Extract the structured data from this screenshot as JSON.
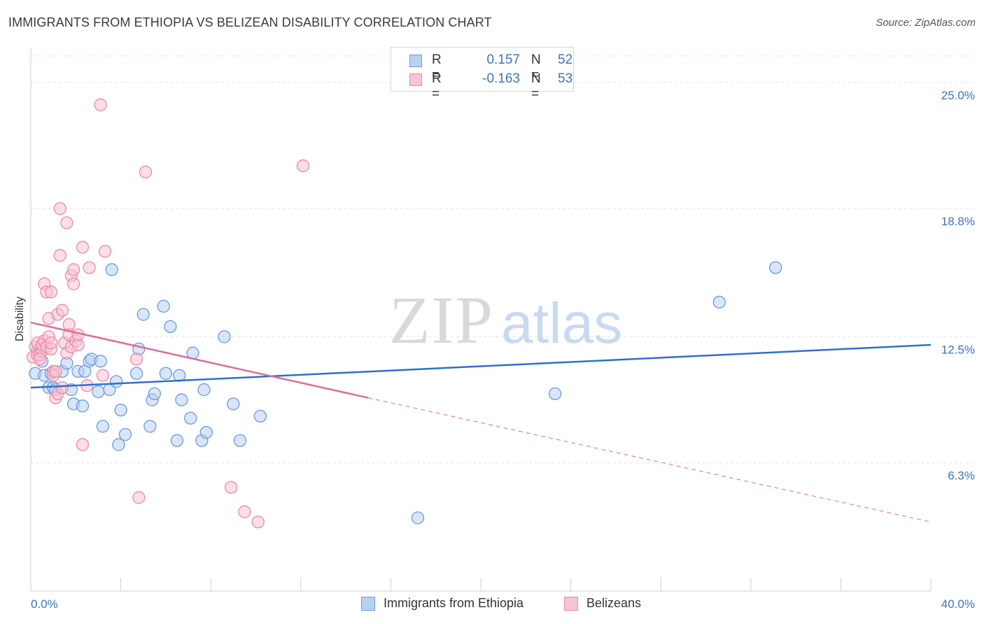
{
  "title": "IMMIGRANTS FROM ETHIOPIA VS BELIZEAN DISABILITY CORRELATION CHART",
  "source": "Source: ZipAtlas.com",
  "watermark": {
    "part1": "ZIP",
    "part2": "atlas"
  },
  "legend": {
    "r_label": "R =",
    "n_label": "N =",
    "rows": [
      {
        "r": "0.157",
        "n": "52"
      },
      {
        "r": "-0.163",
        "n": "53"
      }
    ]
  },
  "colors": {
    "blue_fill": "#b9d1f1",
    "blue_stroke": "#6a9be0",
    "blue_line": "#2f6fcc",
    "pink_fill": "#f8c3d3",
    "pink_stroke": "#ea8aa8",
    "pink_line": "#e06b94",
    "tick_label": "#3d73c4",
    "grid": "#e4e4e4"
  },
  "chart_data": {
    "type": "scatter",
    "title": "IMMIGRANTS FROM ETHIOPIA VS BELIZEAN DISABILITY CORRELATION CHART",
    "xlabel": "",
    "ylabel": "Disability",
    "xlim": [
      0,
      40
    ],
    "ylim": [
      0,
      26.3
    ],
    "x_tick_labels": [
      "0.0%",
      "40.0%"
    ],
    "y_ticks": [
      6.3,
      12.5,
      18.8,
      25.0
    ],
    "y_tick_labels": [
      "6.3%",
      "12.5%",
      "18.8%",
      "25.0%"
    ],
    "grid": "horizontal dashed",
    "legend_position": "top-center and bottom",
    "series": [
      {
        "name": "Immigrants from Ethiopia",
        "r": 0.157,
        "n": 52,
        "trend": {
          "x": [
            0,
            40
          ],
          "y": [
            10.0,
            12.1
          ]
        },
        "points": [
          [
            0.2,
            10.7
          ],
          [
            0.3,
            11.8
          ],
          [
            0.4,
            11.9
          ],
          [
            0.5,
            11.3
          ],
          [
            0.6,
            10.6
          ],
          [
            0.8,
            10.0
          ],
          [
            0.9,
            10.7
          ],
          [
            1.0,
            10.0
          ],
          [
            1.1,
            9.9
          ],
          [
            1.4,
            10.8
          ],
          [
            1.6,
            11.2
          ],
          [
            1.8,
            9.9
          ],
          [
            1.9,
            9.2
          ],
          [
            2.1,
            10.8
          ],
          [
            2.3,
            9.1
          ],
          [
            2.4,
            10.8
          ],
          [
            2.6,
            11.3
          ],
          [
            2.7,
            11.4
          ],
          [
            3.0,
            9.8
          ],
          [
            3.1,
            11.3
          ],
          [
            3.2,
            8.1
          ],
          [
            3.5,
            9.9
          ],
          [
            3.6,
            15.8
          ],
          [
            3.8,
            10.3
          ],
          [
            3.9,
            7.2
          ],
          [
            4.0,
            8.9
          ],
          [
            4.2,
            7.7
          ],
          [
            4.7,
            10.7
          ],
          [
            4.8,
            11.9
          ],
          [
            5.0,
            13.6
          ],
          [
            5.3,
            8.1
          ],
          [
            5.4,
            9.4
          ],
          [
            5.5,
            9.7
          ],
          [
            5.9,
            14.0
          ],
          [
            6.0,
            10.7
          ],
          [
            6.2,
            13.0
          ],
          [
            6.5,
            7.4
          ],
          [
            6.6,
            10.6
          ],
          [
            6.7,
            9.4
          ],
          [
            7.1,
            8.5
          ],
          [
            7.2,
            11.7
          ],
          [
            7.6,
            7.4
          ],
          [
            7.7,
            9.9
          ],
          [
            7.8,
            7.8
          ],
          [
            8.6,
            12.5
          ],
          [
            9.0,
            9.2
          ],
          [
            9.3,
            7.4
          ],
          [
            10.2,
            8.6
          ],
          [
            17.2,
            3.6
          ],
          [
            23.3,
            9.7
          ],
          [
            30.6,
            14.2
          ],
          [
            33.1,
            15.9
          ]
        ]
      },
      {
        "name": "Belizeans",
        "r": -0.163,
        "n": 53,
        "trend_solid": {
          "x": [
            0,
            15.0
          ],
          "y": [
            13.2,
            9.5
          ]
        },
        "trend_dashed": {
          "x": [
            15.0,
            40
          ],
          "y": [
            9.5,
            3.4
          ]
        },
        "points": [
          [
            0.1,
            11.5
          ],
          [
            0.2,
            12.0
          ],
          [
            0.3,
            11.6
          ],
          [
            0.3,
            12.2
          ],
          [
            0.4,
            11.6
          ],
          [
            0.5,
            11.8
          ],
          [
            0.5,
            12.1
          ],
          [
            0.6,
            12.3
          ],
          [
            0.6,
            15.1
          ],
          [
            0.7,
            14.7
          ],
          [
            0.7,
            12.0
          ],
          [
            0.8,
            12.5
          ],
          [
            0.8,
            13.4
          ],
          [
            0.9,
            14.7
          ],
          [
            0.9,
            11.9
          ],
          [
            1.0,
            10.8
          ],
          [
            1.0,
            10.6
          ],
          [
            1.1,
            9.5
          ],
          [
            1.1,
            10.8
          ],
          [
            1.2,
            9.7
          ],
          [
            1.2,
            13.6
          ],
          [
            1.3,
            18.8
          ],
          [
            1.3,
            16.5
          ],
          [
            1.4,
            13.8
          ],
          [
            1.4,
            10.0
          ],
          [
            1.5,
            12.2
          ],
          [
            1.6,
            11.7
          ],
          [
            1.6,
            18.1
          ],
          [
            1.7,
            13.1
          ],
          [
            1.7,
            12.6
          ],
          [
            1.8,
            12.0
          ],
          [
            1.8,
            15.5
          ],
          [
            1.9,
            15.1
          ],
          [
            1.9,
            15.8
          ],
          [
            2.0,
            12.3
          ],
          [
            2.1,
            12.1
          ],
          [
            2.1,
            12.6
          ],
          [
            2.3,
            16.9
          ],
          [
            2.3,
            7.2
          ],
          [
            2.5,
            10.1
          ],
          [
            2.6,
            15.9
          ],
          [
            3.1,
            23.9
          ],
          [
            3.2,
            10.6
          ],
          [
            3.3,
            16.7
          ],
          [
            4.7,
            11.4
          ],
          [
            4.8,
            4.6
          ],
          [
            5.1,
            20.6
          ],
          [
            8.9,
            5.1
          ],
          [
            9.5,
            3.9
          ],
          [
            10.1,
            3.4
          ],
          [
            12.1,
            20.9
          ],
          [
            0.4,
            11.4
          ],
          [
            0.9,
            12.2
          ]
        ]
      }
    ]
  }
}
